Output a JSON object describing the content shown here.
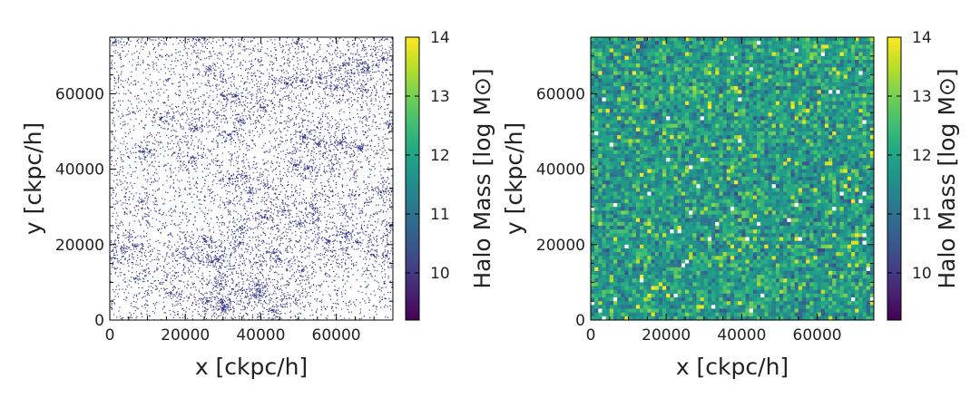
{
  "chart_data": [
    {
      "type": "scatter",
      "xlabel": "x [ckpc/h]",
      "ylabel": "y [ckpc/h]",
      "xlim": [
        0,
        75000
      ],
      "ylim": [
        0,
        75000
      ],
      "xticks": [
        "0",
        "20000",
        "40000",
        "60000"
      ],
      "yticks": [
        "0",
        "20000",
        "40000",
        "60000"
      ],
      "colorbar": {
        "label": "Halo Mass [log M⊙]",
        "range": [
          9.2,
          14
        ],
        "ticks": [
          "10",
          "11",
          "12",
          "13",
          "14"
        ],
        "colormap": "viridis"
      },
      "point_color": "#3b3f8f",
      "point_mass_typical": 10.2
    },
    {
      "type": "heatmap",
      "xlabel": "x [ckpc/h]",
      "ylabel": "y [ckpc/h]",
      "xlim": [
        0,
        75000
      ],
      "ylim": [
        0,
        75000
      ],
      "xticks": [
        "0",
        "20000",
        "40000",
        "60000"
      ],
      "yticks": [
        "0",
        "20000",
        "40000",
        "60000"
      ],
      "grid_cells": 75,
      "cell_mass_range": [
        9.3,
        14
      ],
      "cell_mass_typical": 11.8,
      "empty_cell_color": "#ffffff",
      "colorbar": {
        "label": "Halo Mass [log M⊙]",
        "range": [
          9.2,
          14
        ],
        "ticks": [
          "10",
          "11",
          "12",
          "13",
          "14"
        ],
        "colormap": "viridis"
      }
    }
  ]
}
